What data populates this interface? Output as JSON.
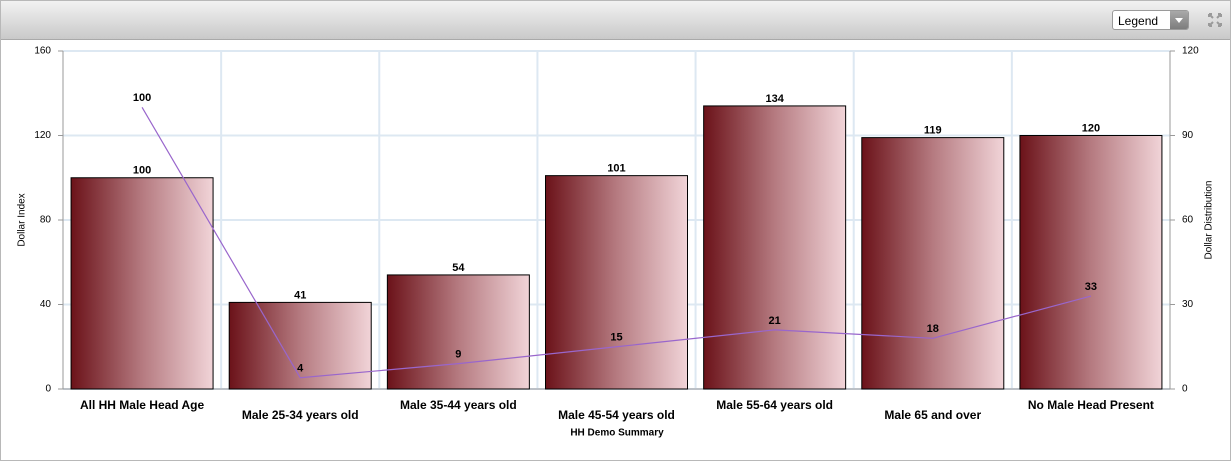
{
  "ui": {
    "legend_button": "Legend"
  },
  "chart_data": {
    "type": "bar",
    "xlabel": "HH Demo Summary",
    "ylabel": "Dollar Index",
    "y2label": "Dollar Distribution",
    "categories": [
      "All HH Male Head Age",
      "Male 25-34 years old",
      "Male 35-44 years old",
      "Male 45-54 years old",
      "Male 55-64 years old",
      "Male 65 and over",
      "No Male Head Present"
    ],
    "series": [
      {
        "type": "bar",
        "color": "#6b1219",
        "values": [
          100,
          41,
          54,
          101,
          134,
          119,
          120
        ]
      },
      {
        "type": "line",
        "axis": "y2",
        "color": "#9966cc",
        "values": [
          100,
          4,
          9,
          15,
          21,
          18,
          33
        ]
      }
    ],
    "ylim": [
      0,
      160
    ],
    "yticks": [
      0,
      40,
      80,
      120,
      160
    ],
    "y2lim": [
      0,
      120
    ],
    "y2ticks": [
      0,
      30,
      60,
      90,
      120
    ],
    "grid": true
  }
}
